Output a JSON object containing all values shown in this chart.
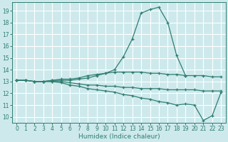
{
  "x": [
    0,
    1,
    2,
    3,
    4,
    5,
    6,
    7,
    8,
    9,
    10,
    11,
    12,
    13,
    14,
    15,
    16,
    17,
    18,
    19,
    20,
    21,
    22,
    23
  ],
  "line_peak": [
    13.1,
    13.1,
    13.0,
    13.0,
    13.1,
    13.1,
    13.1,
    13.2,
    13.3,
    13.5,
    13.7,
    14.0,
    15.1,
    16.6,
    18.8,
    19.1,
    19.3,
    18.0,
    15.2,
    13.5,
    null,
    null,
    null,
    null
  ],
  "line_upper": [
    13.1,
    13.1,
    13.0,
    13.0,
    13.1,
    13.2,
    13.2,
    13.3,
    13.5,
    13.6,
    13.7,
    13.8,
    13.8,
    13.8,
    13.8,
    13.7,
    13.7,
    13.6,
    13.6,
    13.5,
    13.5,
    13.5,
    13.4,
    13.4
  ],
  "line_mid": [
    13.1,
    13.1,
    13.0,
    13.0,
    13.0,
    13.0,
    12.9,
    12.8,
    12.7,
    12.7,
    12.6,
    12.6,
    12.5,
    12.5,
    12.4,
    12.4,
    12.4,
    12.3,
    12.3,
    12.3,
    12.3,
    12.2,
    12.2,
    12.2
  ],
  "line_lower": [
    13.1,
    13.1,
    13.0,
    13.0,
    13.0,
    12.9,
    12.7,
    12.6,
    12.4,
    12.3,
    12.2,
    12.1,
    11.9,
    11.8,
    11.6,
    11.5,
    11.3,
    11.2,
    11.0,
    11.1,
    11.0,
    9.7,
    10.1,
    12.1
  ],
  "line_color": "#2e7d70",
  "bg_color": "#cde9ec",
  "grid_color": "#ffffff",
  "xlabel": "Humidex (Indice chaleur)",
  "ylim": [
    9.5,
    19.7
  ],
  "xlim": [
    -0.5,
    23.5
  ],
  "yticks": [
    10,
    11,
    12,
    13,
    14,
    15,
    16,
    17,
    18,
    19
  ],
  "xticks": [
    0,
    1,
    2,
    3,
    4,
    5,
    6,
    7,
    8,
    9,
    10,
    11,
    12,
    13,
    14,
    15,
    16,
    17,
    18,
    19,
    20,
    21,
    22,
    23
  ],
  "axis_fontsize": 6.5,
  "tick_fontsize": 5.5,
  "marker_size": 3,
  "lw": 0.9
}
